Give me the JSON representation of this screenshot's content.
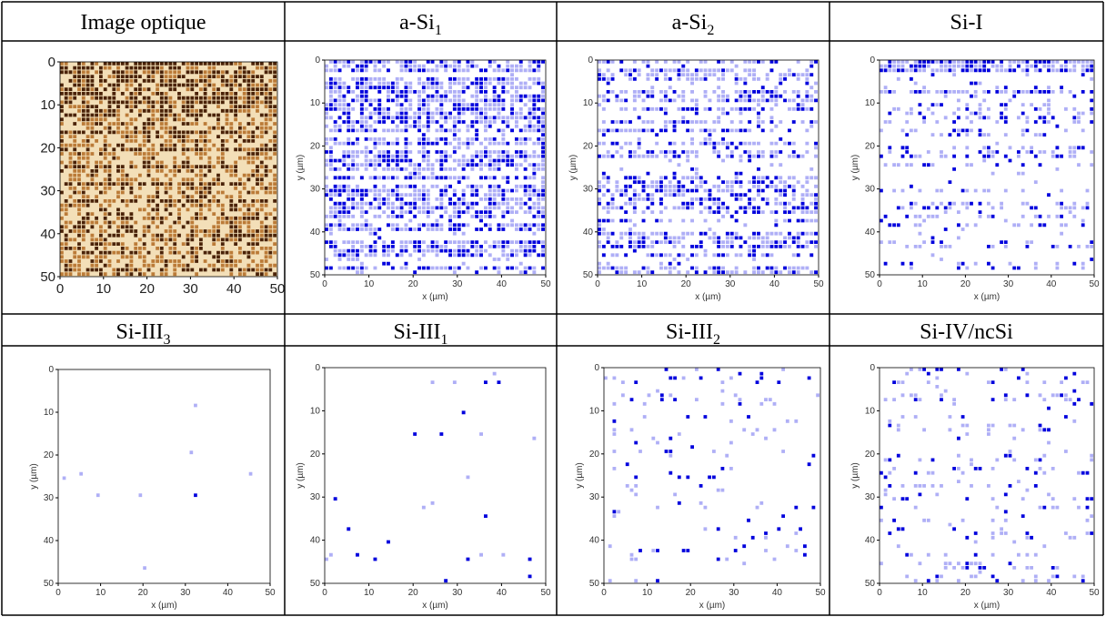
{
  "table": {
    "rows": [
      {
        "headers": [
          {
            "base": "Image optique"
          },
          {
            "base": "a-Si",
            "sub": "1"
          },
          {
            "base": "a-Si",
            "sub": "2"
          },
          {
            "base": "Si-I"
          }
        ]
      },
      {
        "headers": [
          {
            "base": "Si-III",
            "sub": "3"
          },
          {
            "base": "Si-III",
            "sub": "1"
          },
          {
            "base": "Si-III",
            "sub": "2"
          },
          {
            "base": "Si-IV/ncSi"
          }
        ]
      }
    ]
  },
  "axis": {
    "ticks": [
      0,
      10,
      20,
      30,
      40,
      50
    ],
    "xlabel": "x (µm)",
    "ylabel": "y (µm)"
  }
}
